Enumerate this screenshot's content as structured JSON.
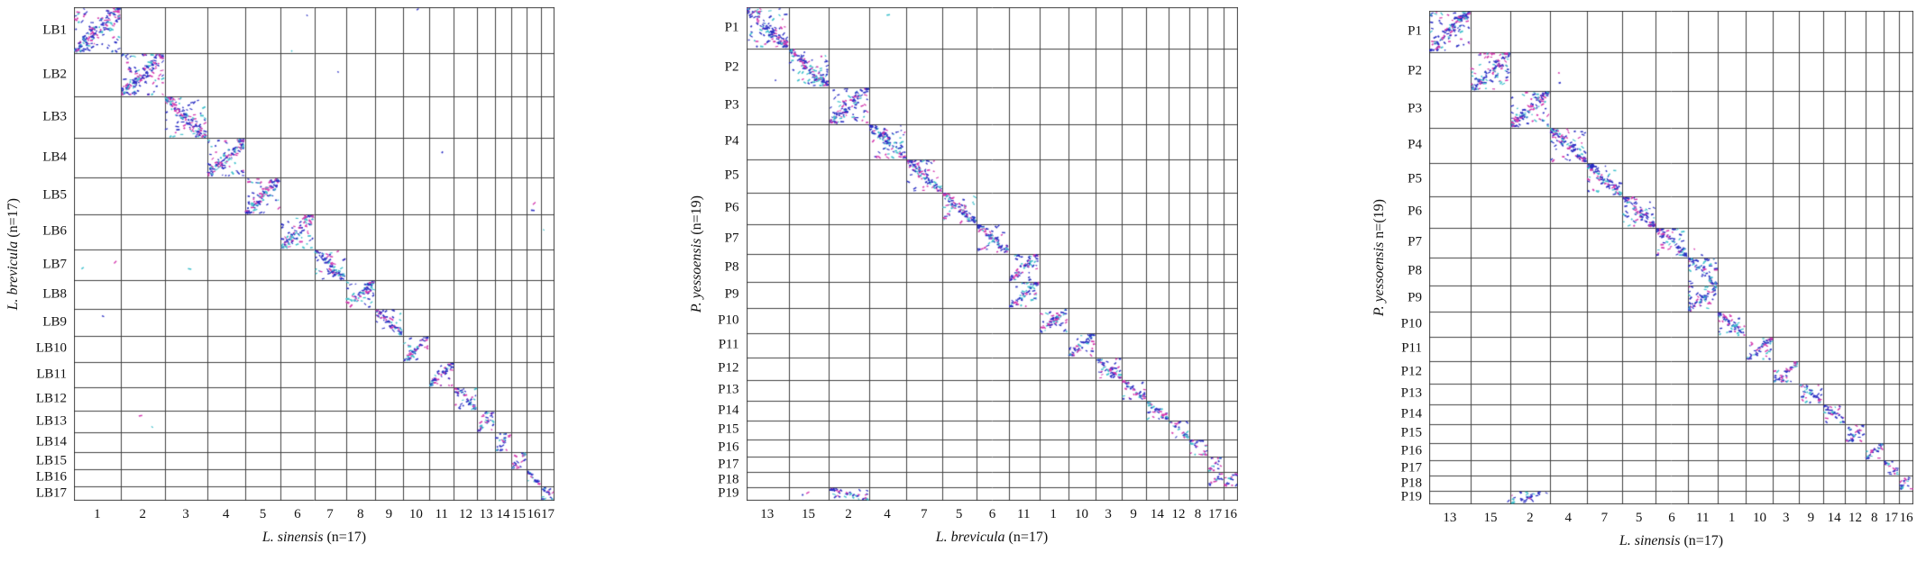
{
  "figure": {
    "background": "#ffffff"
  },
  "chart_data": {
    "type": "scatter",
    "subtype": "synteny-dotplot",
    "grid": true,
    "grid_color": "#404040",
    "dot_colors": [
      "#2b2fc4",
      "#d438ae",
      "#3ec0cc"
    ],
    "dot_color_weights": [
      0.5,
      0.27,
      0.23
    ],
    "panels": [
      {
        "y_label_italic": "L. brevicula",
        "y_label_rest": " (n=17)",
        "x_label_italic": "L. sinensis",
        "x_label_rest": " (n=17)",
        "row_labels": [
          "LB1",
          "LB2",
          "LB3",
          "LB4",
          "LB5",
          "LB6",
          "LB7",
          "LB8",
          "LB9",
          "LB10",
          "LB11",
          "LB12",
          "LB13",
          "LB14",
          "LB15",
          "LB16",
          "LB17"
        ],
        "col_labels": [
          "1",
          "2",
          "3",
          "4",
          "5",
          "6",
          "7",
          "8",
          "9",
          "10",
          "11",
          "12",
          "13",
          "14",
          "15",
          "16",
          "17"
        ],
        "row_weights": [
          1.55,
          1.45,
          1.42,
          1.32,
          1.25,
          1.18,
          1.05,
          0.95,
          0.92,
          0.88,
          0.85,
          0.8,
          0.72,
          0.66,
          0.6,
          0.55,
          0.5
        ],
        "col_weights": [
          1.6,
          1.5,
          1.45,
          1.3,
          1.22,
          1.15,
          1.08,
          1.0,
          0.95,
          0.9,
          0.85,
          0.8,
          0.6,
          0.56,
          0.52,
          0.5,
          0.46
        ],
        "diagonal_cells": [
          [
            0,
            0
          ],
          [
            1,
            1
          ],
          [
            2,
            2
          ],
          [
            3,
            3
          ],
          [
            4,
            4
          ],
          [
            5,
            5
          ],
          [
            6,
            6
          ],
          [
            7,
            7
          ],
          [
            8,
            8
          ],
          [
            9,
            9
          ],
          [
            10,
            10
          ],
          [
            11,
            11
          ],
          [
            12,
            12
          ],
          [
            13,
            13
          ],
          [
            14,
            14
          ],
          [
            15,
            15
          ],
          [
            16,
            16
          ]
        ],
        "extra_clusters": [],
        "stray_dots": [
          [
            0,
            5,
            2
          ],
          [
            0,
            9,
            1
          ],
          [
            1,
            6,
            1
          ],
          [
            3,
            10,
            1
          ],
          [
            4,
            15,
            2
          ],
          [
            5,
            16,
            1
          ],
          [
            6,
            0,
            2
          ],
          [
            6,
            2,
            1
          ],
          [
            8,
            0,
            1
          ],
          [
            12,
            1,
            2
          ]
        ]
      },
      {
        "y_label_italic": "P. yessoensis",
        "y_label_rest": " (n=19)",
        "x_label_italic": "L. brevicula",
        "x_label_rest": " (n=17)",
        "row_labels": [
          "P1",
          "P2",
          "P3",
          "P4",
          "P5",
          "P6",
          "P7",
          "P8",
          "P9",
          "P10",
          "P11",
          "P12",
          "P13",
          "P14",
          "P15",
          "P16",
          "P17",
          "P18",
          "P19"
        ],
        "col_labels": [
          "13",
          "15",
          "2",
          "4",
          "7",
          "5",
          "6",
          "11",
          "1",
          "10",
          "3",
          "9",
          "14",
          "12",
          "8",
          "17",
          "16"
        ],
        "row_weights": [
          1.5,
          1.42,
          1.35,
          1.28,
          1.21,
          1.15,
          1.08,
          1.02,
          0.97,
          0.92,
          0.87,
          0.82,
          0.77,
          0.72,
          0.68,
          0.63,
          0.58,
          0.54,
          0.5
        ],
        "col_weights": [
          1.45,
          1.4,
          1.38,
          1.3,
          1.24,
          1.18,
          1.12,
          1.05,
          1.0,
          0.95,
          0.9,
          0.85,
          0.78,
          0.7,
          0.64,
          0.55,
          0.5
        ],
        "diagonal_cells": [
          [
            0,
            0
          ],
          [
            1,
            1
          ],
          [
            2,
            2
          ],
          [
            3,
            3
          ],
          [
            4,
            4
          ],
          [
            5,
            5
          ],
          [
            6,
            6
          ],
          [
            7,
            7
          ],
          [
            8,
            7
          ],
          [
            9,
            8
          ],
          [
            10,
            9
          ],
          [
            11,
            10
          ],
          [
            12,
            11
          ],
          [
            13,
            12
          ],
          [
            14,
            13
          ],
          [
            15,
            14
          ],
          [
            16,
            15
          ],
          [
            17,
            16
          ]
        ],
        "extra_clusters": [
          [
            18,
            2,
            0.9
          ],
          [
            17,
            15,
            0.6
          ]
        ],
        "stray_dots": [
          [
            0,
            3,
            1
          ],
          [
            1,
            0,
            1
          ],
          [
            18,
            1,
            2
          ]
        ]
      },
      {
        "y_label_italic": "P. yessoensis",
        "y_label_rest": " n=(19)",
        "x_label_italic": "L. sinensis",
        "x_label_rest": " (n=17)",
        "row_labels": [
          "P1",
          "P2",
          "P3",
          "P4",
          "P5",
          "P6",
          "P7",
          "P8",
          "P9",
          "P10",
          "P11",
          "P12",
          "P13",
          "P14",
          "P15",
          "P16",
          "P17",
          "P18",
          "P19"
        ],
        "col_labels": [
          "13",
          "15",
          "2",
          "4",
          "7",
          "5",
          "6",
          "11",
          "1",
          "10",
          "3",
          "9",
          "14",
          "12",
          "8",
          "17",
          "16"
        ],
        "row_weights": [
          1.5,
          1.42,
          1.35,
          1.28,
          1.21,
          1.15,
          1.08,
          1.02,
          0.97,
          0.92,
          0.87,
          0.82,
          0.77,
          0.72,
          0.68,
          0.63,
          0.58,
          0.54,
          0.5
        ],
        "col_weights": [
          1.45,
          1.4,
          1.38,
          1.3,
          1.24,
          1.18,
          1.12,
          1.05,
          1.0,
          0.95,
          0.9,
          0.85,
          0.78,
          0.7,
          0.64,
          0.55,
          0.5
        ],
        "diagonal_cells": [
          [
            0,
            0
          ],
          [
            1,
            1
          ],
          [
            2,
            2
          ],
          [
            3,
            3
          ],
          [
            4,
            4
          ],
          [
            5,
            5
          ],
          [
            6,
            6
          ],
          [
            7,
            7
          ],
          [
            8,
            7
          ],
          [
            9,
            8
          ],
          [
            10,
            9
          ],
          [
            11,
            10
          ],
          [
            12,
            11
          ],
          [
            13,
            12
          ],
          [
            14,
            13
          ],
          [
            15,
            14
          ],
          [
            16,
            15
          ],
          [
            17,
            16
          ]
        ],
        "extra_clusters": [
          [
            18,
            2,
            0.6
          ]
        ],
        "stray_dots": [
          [
            1,
            3,
            2
          ],
          [
            6,
            7,
            2
          ],
          [
            18,
            1,
            1
          ]
        ]
      }
    ]
  }
}
